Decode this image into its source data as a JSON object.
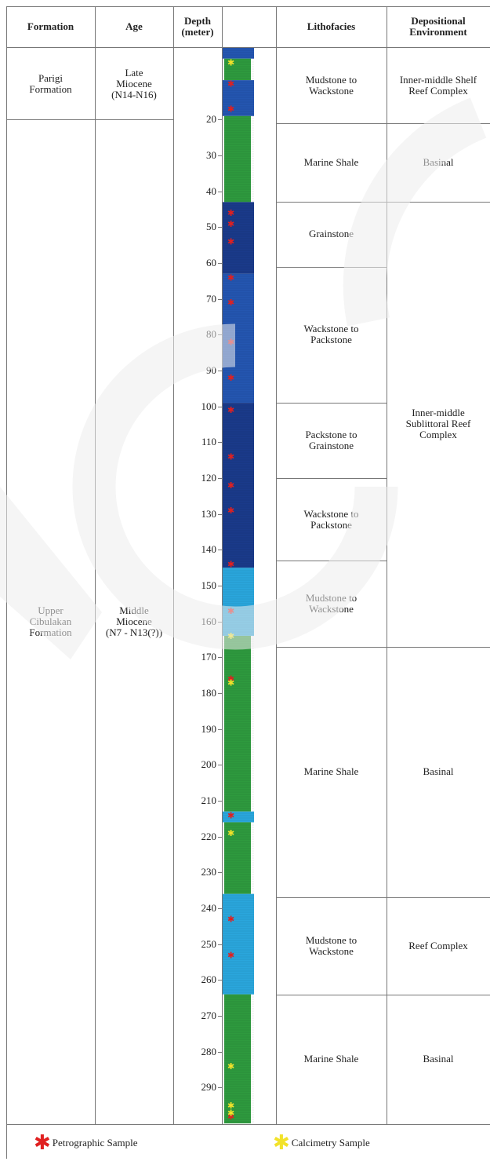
{
  "headers": {
    "formation": "Formation",
    "age": "Age",
    "depth": "Depth\n(meter)",
    "lithofacies": "Lithofacies",
    "environment": "Depositional\nEnvironment"
  },
  "formations": [
    {
      "name": "Parigi\nFormation",
      "age": "Late\nMiocene\n(N14-N16)"
    },
    {
      "name": "Upper\nCibulakan\nFormation",
      "age": "Middle\nMiocene\n(N7 - N13(?))"
    }
  ],
  "depth_ticks": [
    "20",
    "30",
    "40",
    "50",
    "60",
    "70",
    "80",
    "90",
    "100",
    "110",
    "120",
    "130",
    "140",
    "150",
    "160",
    "170",
    "180",
    "190",
    "200",
    "210",
    "220",
    "230",
    "240",
    "250",
    "260",
    "270",
    "280",
    "290"
  ],
  "lithofacies": [
    {
      "label": "Mudstone to\nWackstone",
      "top": 0,
      "bottom": 21
    },
    {
      "label": "Marine Shale",
      "top": 21,
      "bottom": 43
    },
    {
      "label": "Grainstone",
      "top": 43,
      "bottom": 61
    },
    {
      "label": "Wackstone to\nPackstone",
      "top": 61,
      "bottom": 99
    },
    {
      "label": "Packstone to\nGrainstone",
      "top": 99,
      "bottom": 120
    },
    {
      "label": "Wackstone to\nPackstone",
      "top": 120,
      "bottom": 143
    },
    {
      "label": "Mudstone to\nWackstone",
      "top": 143,
      "bottom": 167
    },
    {
      "label": "Marine Shale",
      "top": 167,
      "bottom": 237
    },
    {
      "label": "Mudstone to\nWackstone",
      "top": 237,
      "bottom": 264
    },
    {
      "label": "Marine Shale",
      "top": 264,
      "bottom": 300
    }
  ],
  "environments": [
    {
      "label": "Inner-middle Shelf\nReef Complex",
      "top": 0,
      "bottom": 21
    },
    {
      "label": "Basinal",
      "top": 21,
      "bottom": 43
    },
    {
      "label": "Inner-middle\nSublittoral Reef\nComplex",
      "top": 43,
      "bottom": 167
    },
    {
      "label": "Basinal",
      "top": 167,
      "bottom": 237
    },
    {
      "label": "Reef Complex",
      "top": 237,
      "bottom": 264
    },
    {
      "label": "Basinal",
      "top": 264,
      "bottom": 300
    }
  ],
  "colors": {
    "shale": "#2e9a3e",
    "limestone_dark": "#1a3a8a",
    "limestone_mid": "#2456b0",
    "limestone_light": "#2aa6dc",
    "petrographic": "#e02020",
    "calcimetry": "#f2e22a",
    "watermark": "#e6e6e6"
  },
  "column_layers": [
    {
      "top": 0,
      "bottom": 3,
      "lith": "limestone_mid"
    },
    {
      "top": 3,
      "bottom": 9,
      "lith": "shale"
    },
    {
      "top": 9,
      "bottom": 19,
      "lith": "limestone_mid"
    },
    {
      "top": 19,
      "bottom": 43,
      "lith": "shale"
    },
    {
      "top": 43,
      "bottom": 63,
      "lith": "limestone_dark"
    },
    {
      "top": 63,
      "bottom": 99,
      "lith": "limestone_mid"
    },
    {
      "top": 99,
      "bottom": 145,
      "lith": "limestone_dark"
    },
    {
      "top": 145,
      "bottom": 164,
      "lith": "limestone_light"
    },
    {
      "top": 164,
      "bottom": 213,
      "lith": "shale"
    },
    {
      "top": 213,
      "bottom": 216,
      "lith": "limestone_light"
    },
    {
      "top": 216,
      "bottom": 236,
      "lith": "shale"
    },
    {
      "top": 236,
      "bottom": 264,
      "lith": "limestone_light"
    },
    {
      "top": 264,
      "bottom": 300,
      "lith": "shale"
    }
  ],
  "samples": {
    "petrographic": [
      10,
      17,
      46,
      49,
      54,
      64,
      71,
      82,
      92,
      101,
      114,
      122,
      129,
      144,
      157,
      176,
      214,
      243,
      253,
      298
    ],
    "calcimetry": [
      4,
      164,
      177,
      219,
      284,
      295,
      297
    ]
  },
  "legend": {
    "petrographic": "Petrographic Sample",
    "calcimetry": "Calcimetry Sample"
  }
}
